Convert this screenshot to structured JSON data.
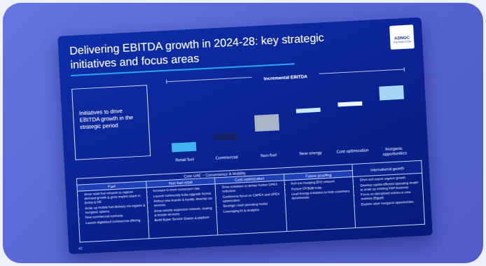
{
  "slide": {
    "title": "Delivering EBITDA growth in 2024-28: key strategic initiatives and focus areas",
    "logo": [
      "ADNOC",
      "DISTRIBUTION"
    ],
    "left_box": "Initiatives to drive EBITDA growth in the strategic period",
    "page": "42",
    "table": {
      "groups": [
        {
          "label": "Core UAE – Convenience & Mobility",
          "span": 4
        },
        {
          "label": "International growth",
          "span": 1
        }
      ],
      "columns": [
        {
          "header": "Fuel",
          "bullets": [
            "Grow retail fuel network to capture demand growth & grow market share in Dubai & NE",
            "Scale up mobile fuel delivery via organic & inorganic options",
            "New commercial contracts",
            "Launch digitalized commercial offering"
          ]
        },
        {
          "header": "Non fuel retail",
          "bullets": [
            "Increase C-store conversion rate",
            "Launch community hubs upgrade format",
            "Rollout new brands & loyalty, develop car services",
            "Grow vehicle inspection network, scaling & mobile services",
            "Build Super Service Station & platform"
          ]
        },
        {
          "header": "Cost optimization",
          "bullets": [
            "Drive initiatives to deliver further OPEX reduction",
            "Continuous focus on CAPEX and OPEX optimization",
            "Strategic retail operating model",
            "Leveraging AI & analytics"
          ]
        },
        {
          "header": "Future proofing",
          "bullets": [
            "Roll out charging (EV) network",
            "Pursue CP/B2B hubs",
            "Lead energy transition to help customers decarbonize"
          ]
        },
        {
          "header": null,
          "bullets": [
            "Drive and export organic growth",
            "Develop capital efficient operating model to scale up existing KSA business",
            "Focus on disciplined entries in new markets (Egypt)",
            "Explore other inorganic opportunities"
          ]
        }
      ]
    }
  },
  "chart_data": {
    "type": "waterfall",
    "title": "Incremental EBITDA",
    "categories": [
      "Retail fuel",
      "Commercial",
      "Non-fuel",
      "New energy",
      "Cost optimization",
      "Inorganic opportunities"
    ],
    "values": [
      15,
      12,
      27,
      7,
      7,
      23
    ],
    "colors": [
      "#3fb4f0",
      "#15246a",
      "#aab4c8",
      "#c9e6f8",
      "#eef5fc",
      "#a6d6f6"
    ],
    "tick_labels": "x",
    "grid": false
  }
}
